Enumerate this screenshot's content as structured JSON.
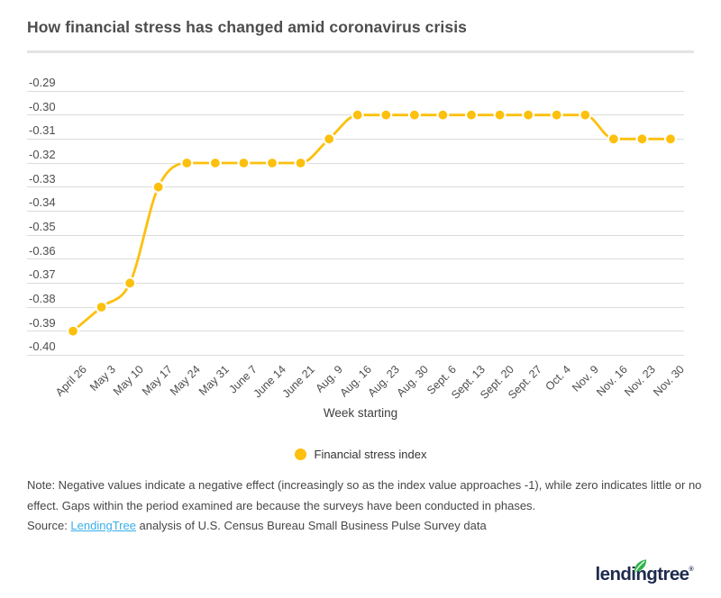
{
  "header": {
    "title": "How financial stress has changed amid coronavirus crisis"
  },
  "chart_data": {
    "type": "line",
    "title": "How financial stress has changed amid coronavirus crisis",
    "xlabel": "Week starting",
    "ylabel": "",
    "legend_position": "bottom-center",
    "grid": true,
    "categories": [
      "April 26",
      "May 3",
      "May 10",
      "May 17",
      "May 24",
      "May 31",
      "June 7",
      "June 14",
      "June 21",
      "Aug. 9",
      "Aug. 16",
      "Aug. 23",
      "Aug. 30",
      "Sept. 6",
      "Sept. 13",
      "Sept. 20",
      "Sept. 27",
      "Oct. 4",
      "Nov. 9",
      "Nov. 16",
      "Nov. 23",
      "Nov. 30"
    ],
    "series": [
      {
        "name": "Financial stress index",
        "values": [
          -0.39,
          -0.38,
          -0.37,
          -0.33,
          -0.32,
          -0.32,
          -0.32,
          -0.32,
          -0.32,
          -0.31,
          -0.3,
          -0.3,
          -0.3,
          -0.3,
          -0.3,
          -0.3,
          -0.3,
          -0.3,
          -0.3,
          -0.31,
          -0.31,
          -0.31
        ]
      }
    ],
    "y_ticks": [
      "-0.29",
      "-0.30",
      "-0.31",
      "-0.32",
      "-0.33",
      "-0.34",
      "-0.35",
      "-0.36",
      "-0.37",
      "-0.38",
      "-0.39",
      "-0.40"
    ],
    "ylim": [
      -0.4,
      -0.29
    ],
    "marker": "circle"
  },
  "legend": {
    "label": "Financial stress index",
    "marker_icon": "circle-marker-icon"
  },
  "note": {
    "text": "Note: Negative values indicate a negative effect (increasingly so as the index value approaches -1), while zero indicates little or no effect. Gaps within the period examined are because the surveys have been conducted in phases."
  },
  "source": {
    "prefix": "Source: ",
    "link_text": "LendingTree",
    "suffix": " analysis of U.S. Census Bureau Small Business Pulse Survey data"
  },
  "logo": {
    "text": "lendingtree",
    "mark": "®",
    "leaf_icon": "leaf-icon"
  },
  "colors": {
    "accent_yellow": "#FCC00D",
    "grid_gray": "#dbdbdb",
    "link_blue": "#38AFE8",
    "logo_navy": "#1E2B4D",
    "leaf_green": "#2FB34C",
    "text_gray": "#4d4d4d"
  }
}
